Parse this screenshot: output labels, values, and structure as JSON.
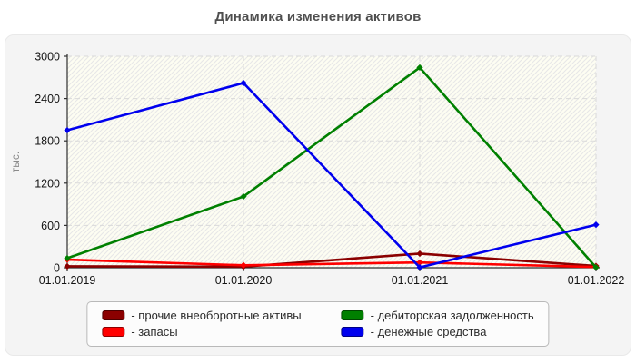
{
  "chart_data": {
    "type": "line",
    "title": "Динамика изменения активов",
    "xlabel": "",
    "ylabel": "тыс.",
    "categories": [
      "01.01.2019",
      "01.01.2020",
      "01.01.2021",
      "01.01.2022"
    ],
    "ylim": [
      0,
      3000
    ],
    "yticks": [
      0,
      600,
      1200,
      1800,
      2400,
      3000
    ],
    "grid": "dashed horizontal and vertical gridlines, hatched plot background",
    "legend_position": "bottom",
    "series": [
      {
        "name": "прочие внеоборотные активы",
        "label": "- прочие внеоборотные активы",
        "color": "#8b0000",
        "values": [
          20,
          15,
          200,
          25
        ]
      },
      {
        "name": "запасы",
        "label": "- запасы",
        "color": "#ff0000",
        "values": [
          115,
          35,
          75,
          10
        ]
      },
      {
        "name": "дебиторская задолженность",
        "label": "- дебиторская задолженность",
        "color": "#008000",
        "values": [
          135,
          1010,
          2840,
          5
        ]
      },
      {
        "name": "денежные средства",
        "label": "- денежные средства",
        "color": "#0000ee",
        "values": [
          1950,
          2620,
          5,
          610
        ]
      }
    ]
  },
  "colors": {
    "page_bg": "#ffffff",
    "panel_bg": "#f4f4f4",
    "plot_bg": "#fdfdf2",
    "hatch_line": "#e7e7e7",
    "grid_line": "#d9d9d9",
    "axis_line": "#2f2f2f",
    "tick_label": "#141414",
    "ylabel_color": "#8a8a8a",
    "title_color": "#4f4f4f"
  }
}
